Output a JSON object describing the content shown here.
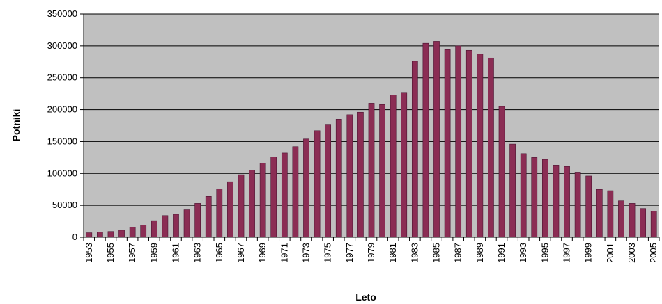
{
  "chart_data": {
    "type": "bar",
    "title": "",
    "xlabel": "Leto",
    "ylabel": "Potniki",
    "ylim": [
      0,
      350000
    ],
    "yticks": [
      "0",
      "50000",
      "100000",
      "150000",
      "200000",
      "250000",
      "300000",
      "350000"
    ],
    "grid": true,
    "legend": "none",
    "colors": {
      "bar": "#8b2d54",
      "bar_edge": "#4a1330",
      "plot_bg": "#c0c0c0",
      "grid": "#000000"
    },
    "categories": [
      "1953",
      "1954",
      "1955",
      "1956",
      "1957",
      "1958",
      "1959",
      "1960",
      "1961",
      "1962",
      "1963",
      "1964",
      "1965",
      "1966",
      "1967",
      "1968",
      "1969",
      "1970",
      "1971",
      "1972",
      "1973",
      "1974",
      "1975",
      "1976",
      "1977",
      "1978",
      "1979",
      "1980",
      "1981",
      "1982",
      "1983",
      "1984",
      "1985",
      "1986",
      "1987",
      "1988",
      "1989",
      "1990",
      "1991",
      "1992",
      "1993",
      "1994",
      "1995",
      "1996",
      "1997",
      "1998",
      "1999",
      "2000",
      "2001",
      "2002",
      "2003",
      "2004",
      "2005"
    ],
    "xtick_labels": [
      "1953",
      "",
      "1955",
      "",
      "1957",
      "",
      "1959",
      "",
      "1961",
      "",
      "1963",
      "",
      "1965",
      "",
      "1967",
      "",
      "1969",
      "",
      "1971",
      "",
      "1973",
      "",
      "1975",
      "",
      "1977",
      "",
      "1979",
      "",
      "1981",
      "",
      "1983",
      "",
      "1985",
      "",
      "1987",
      "",
      "1989",
      "",
      "1991",
      "",
      "1993",
      "",
      "1995",
      "",
      "1997",
      "",
      "1999",
      "",
      "2001",
      "",
      "2003",
      "",
      "2005"
    ],
    "values": [
      7000,
      8000,
      9000,
      11000,
      16000,
      19000,
      26000,
      34000,
      36000,
      43000,
      53000,
      64000,
      76000,
      87000,
      98000,
      105000,
      116000,
      126000,
      132000,
      142000,
      154000,
      167000,
      177000,
      185000,
      192000,
      196000,
      210000,
      208000,
      223000,
      227000,
      276000,
      304000,
      307000,
      294000,
      300000,
      293000,
      287000,
      281000,
      205000,
      146000,
      131000,
      125000,
      122000,
      113000,
      111000,
      102000,
      96000,
      75000,
      73000,
      57000,
      53000,
      45000,
      41000
    ]
  }
}
